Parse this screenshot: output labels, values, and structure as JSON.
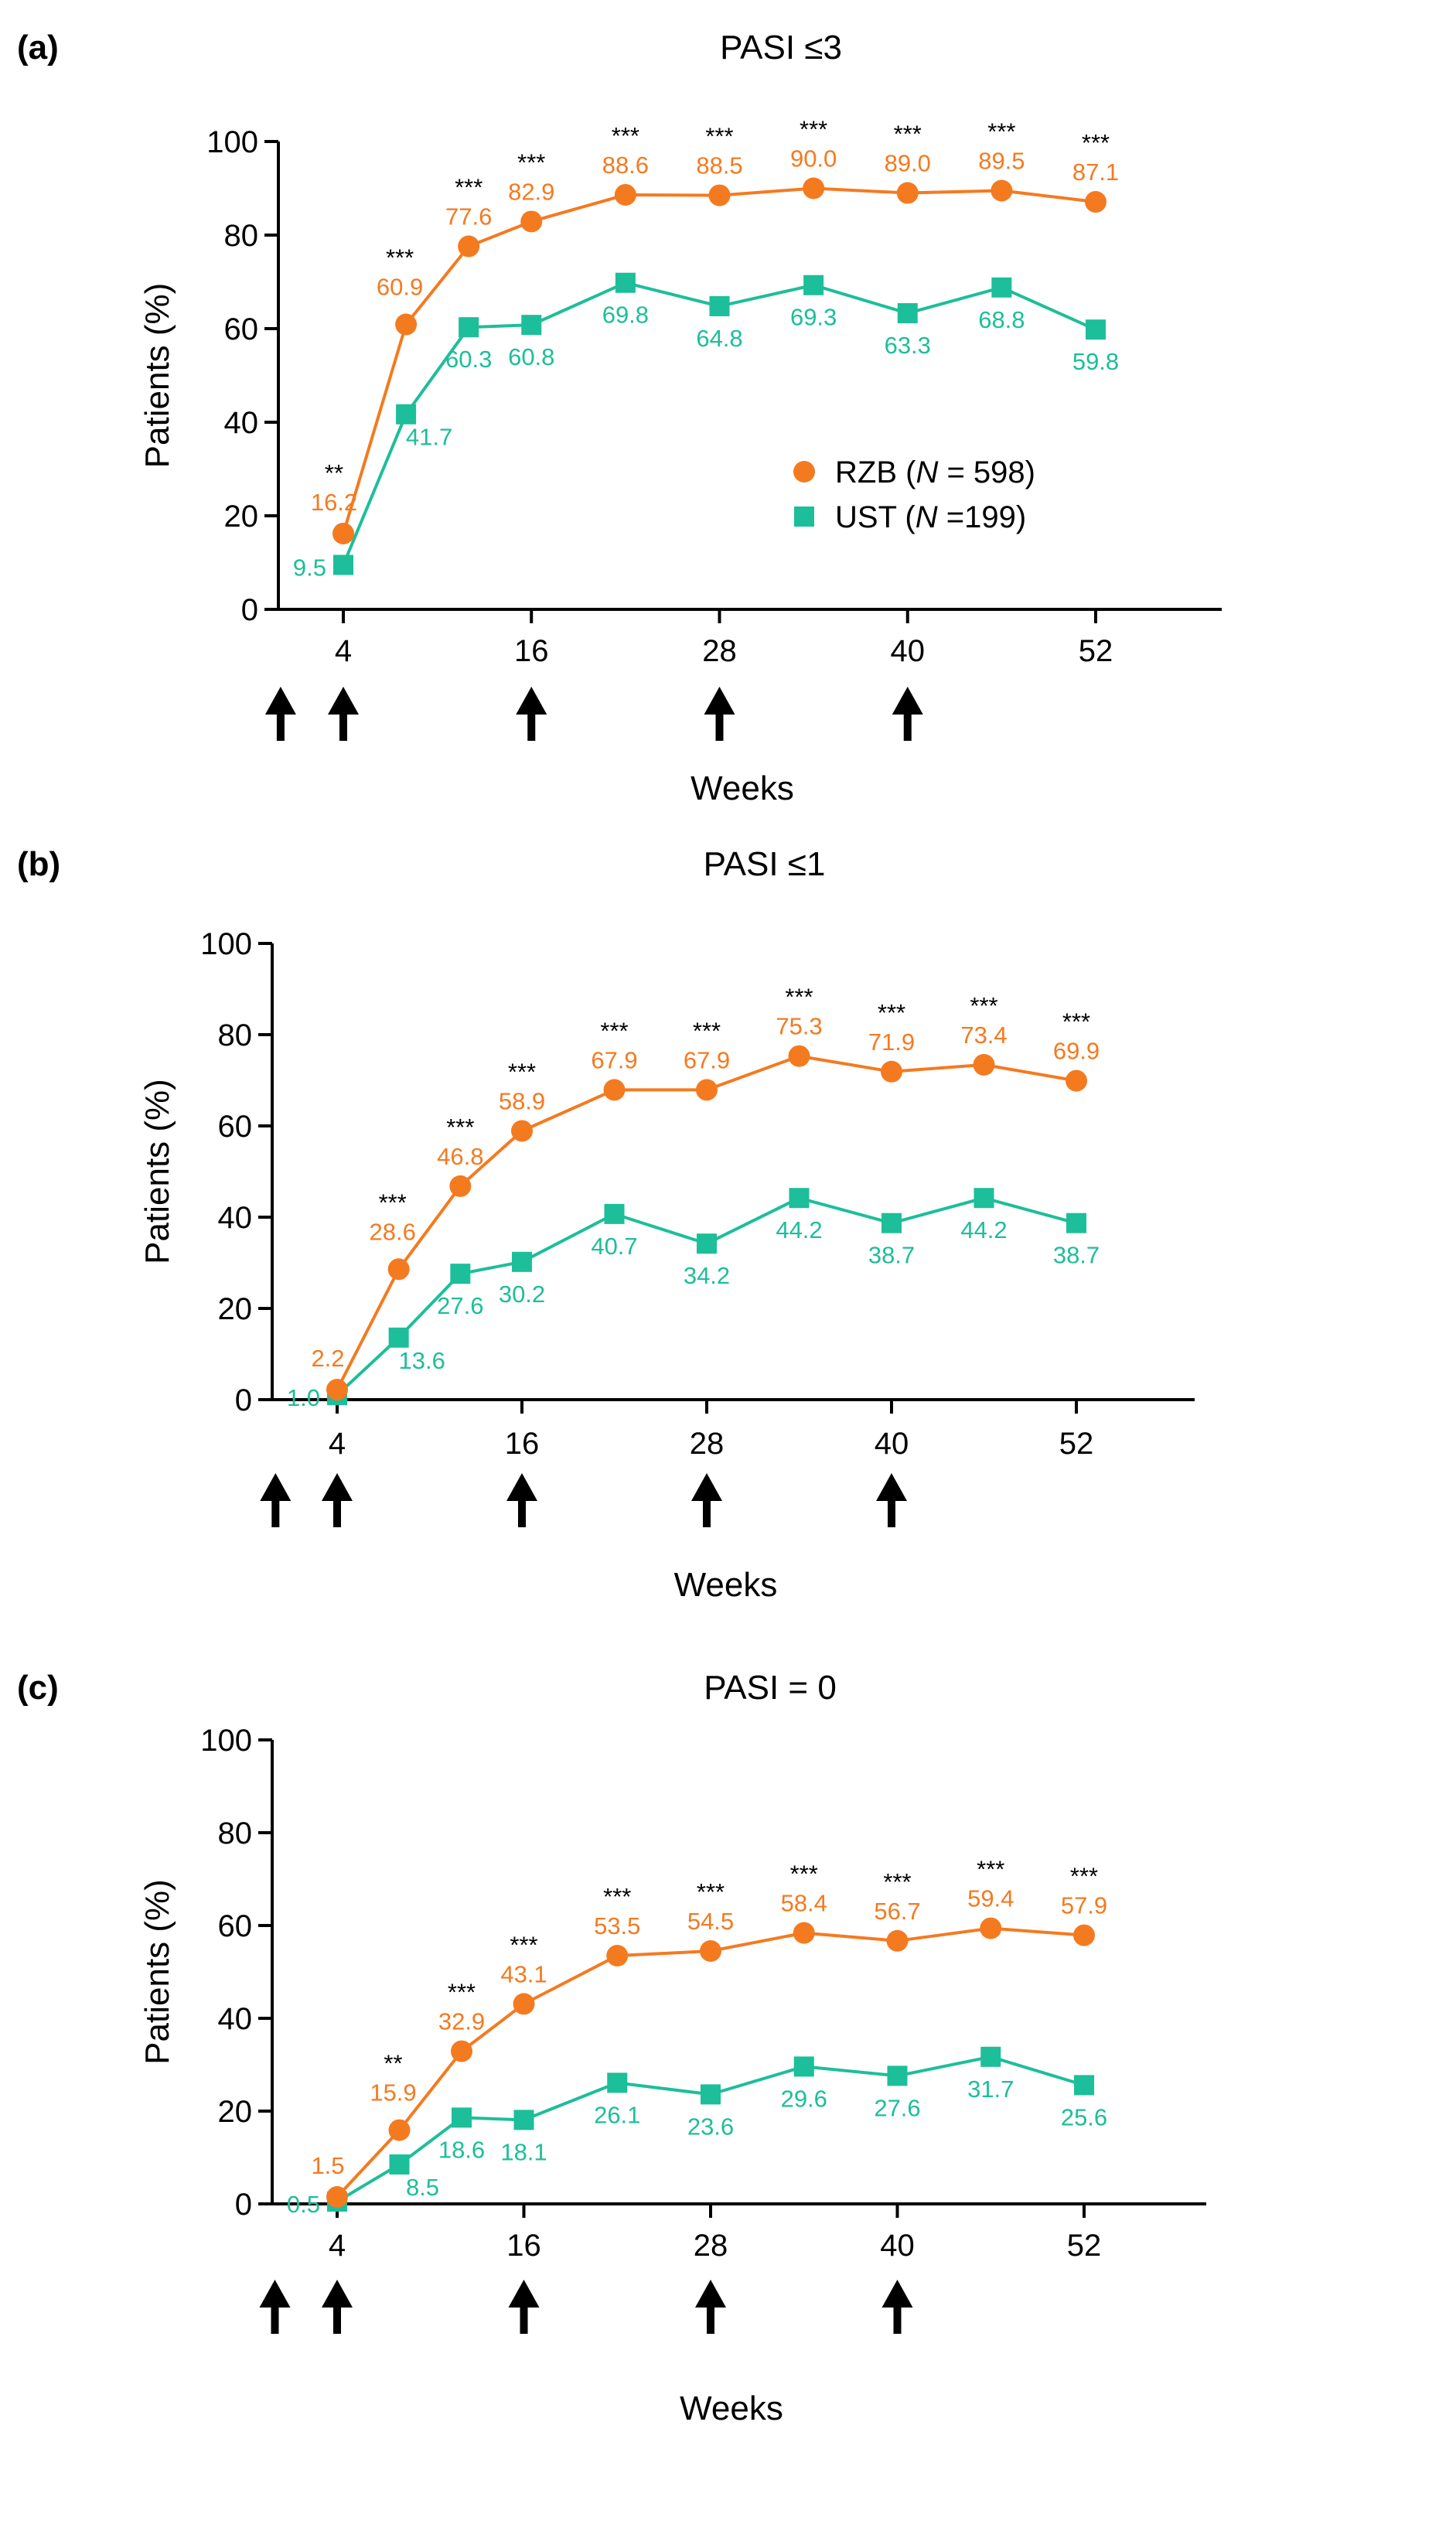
{
  "colors": {
    "rzb": "#F47A20",
    "ust": "#1DBE9A",
    "axis": "#000000",
    "arrow": "#000000"
  },
  "chart_data": [
    {
      "panel": "(a)",
      "type": "line",
      "title": "PASI ≤3",
      "xlabel": "Weeks",
      "ylabel": "Patients (%)",
      "ylim": [
        0,
        100
      ],
      "yticks": [
        "0",
        "20",
        "40",
        "60",
        "80",
        "100"
      ],
      "xticks": [
        "4",
        "16",
        "28",
        "40",
        "52"
      ],
      "xlim": [
        0,
        58
      ],
      "dosing_weeks": [
        0,
        4,
        16,
        28,
        40
      ],
      "legend": {
        "position": "center-right",
        "entries": [
          {
            "series": "rzb",
            "label_parts": [
              {
                "t": "RZB ("
              },
              {
                "t": "N",
                "italic": true
              },
              {
                "t": " = 598)"
              }
            ]
          },
          {
            "series": "ust",
            "label_parts": [
              {
                "t": "UST ("
              },
              {
                "t": "N",
                "italic": true
              },
              {
                "t": " =199)"
              }
            ]
          }
        ]
      },
      "series": [
        {
          "key": "rzb",
          "marker": "circle",
          "x": [
            4,
            8,
            12,
            16,
            22,
            28,
            34,
            40,
            46,
            52
          ],
          "values": [
            16.2,
            60.9,
            77.6,
            82.9,
            88.6,
            88.5,
            90.0,
            89.0,
            89.5,
            87.1
          ],
          "labels": [
            "16.2",
            "60.9",
            "77.6",
            "82.9",
            "88.6",
            "88.5",
            "90.0",
            "89.0",
            "89.5",
            "87.1"
          ]
        },
        {
          "key": "ust",
          "marker": "square",
          "x": [
            4,
            8,
            12,
            16,
            22,
            28,
            34,
            40,
            46,
            52
          ],
          "values": [
            9.5,
            41.7,
            60.3,
            60.8,
            69.8,
            64.8,
            69.3,
            63.3,
            68.8,
            59.8
          ],
          "labels": [
            "9.5",
            "41.7",
            "60.3",
            "60.8",
            "69.8",
            "64.8",
            "69.3",
            "63.3",
            "68.8",
            "59.8"
          ]
        }
      ],
      "significance": [
        "**",
        "***",
        "***",
        "***",
        "***",
        "***",
        "***",
        "***",
        "***",
        "***"
      ]
    },
    {
      "panel": "(b)",
      "type": "line",
      "title": "PASI ≤1",
      "xlabel": "Weeks",
      "ylabel": "Patients (%)",
      "ylim": [
        0,
        100
      ],
      "yticks": [
        "0",
        "20",
        "40",
        "60",
        "80",
        "100"
      ],
      "xticks": [
        "4",
        "16",
        "28",
        "40",
        "52"
      ],
      "xlim": [
        0,
        58
      ],
      "dosing_weeks": [
        0,
        4,
        16,
        28,
        40
      ],
      "series": [
        {
          "key": "rzb",
          "marker": "circle",
          "x": [
            4,
            8,
            12,
            16,
            22,
            28,
            34,
            40,
            46,
            52
          ],
          "values": [
            2.2,
            28.6,
            46.8,
            58.9,
            67.9,
            67.9,
            75.3,
            71.9,
            73.4,
            69.9
          ],
          "labels": [
            "2.2",
            "28.6",
            "46.8",
            "58.9",
            "67.9",
            "67.9",
            "75.3",
            "71.9",
            "73.4",
            "69.9"
          ]
        },
        {
          "key": "ust",
          "marker": "square",
          "x": [
            4,
            8,
            12,
            16,
            22,
            28,
            34,
            40,
            46,
            52
          ],
          "values": [
            1.0,
            13.6,
            27.6,
            30.2,
            40.7,
            34.2,
            44.2,
            38.7,
            44.2,
            38.7
          ],
          "labels": [
            "1.0",
            "13.6",
            "27.6",
            "30.2",
            "40.7",
            "34.2",
            "44.2",
            "38.7",
            "44.2",
            "38.7"
          ]
        }
      ],
      "significance": [
        "",
        "***",
        "***",
        "***",
        "***",
        "***",
        "***",
        "***",
        "***",
        "***"
      ]
    },
    {
      "panel": "(c)",
      "type": "line",
      "title": "PASI = 0",
      "xlabel": "Weeks",
      "ylabel": "Patients (%)",
      "ylim": [
        0,
        100
      ],
      "yticks": [
        "0",
        "20",
        "40",
        "60",
        "80",
        "100"
      ],
      "xticks": [
        "4",
        "16",
        "28",
        "40",
        "52"
      ],
      "xlim": [
        0,
        58
      ],
      "dosing_weeks": [
        0,
        4,
        16,
        28,
        40
      ],
      "series": [
        {
          "key": "rzb",
          "marker": "circle",
          "x": [
            4,
            8,
            12,
            16,
            22,
            28,
            34,
            40,
            46,
            52
          ],
          "values": [
            1.5,
            15.9,
            32.9,
            43.1,
            53.5,
            54.5,
            58.4,
            56.7,
            59.4,
            57.9
          ],
          "labels": [
            "1.5",
            "15.9",
            "32.9",
            "43.1",
            "53.5",
            "54.5",
            "58.4",
            "56.7",
            "59.4",
            "57.9"
          ]
        },
        {
          "key": "ust",
          "marker": "square",
          "x": [
            4,
            8,
            12,
            16,
            22,
            28,
            34,
            40,
            46,
            52
          ],
          "values": [
            0.5,
            8.5,
            18.6,
            18.1,
            26.1,
            23.6,
            29.6,
            27.6,
            31.7,
            25.6
          ],
          "labels": [
            "0.5",
            "8.5",
            "18.6",
            "18.1",
            "26.1",
            "23.6",
            "29.6",
            "27.6",
            "31.7",
            "25.6"
          ]
        }
      ],
      "significance": [
        "",
        "**",
        "***",
        "***",
        "***",
        "***",
        "***",
        "***",
        "***",
        "***"
      ]
    }
  ]
}
